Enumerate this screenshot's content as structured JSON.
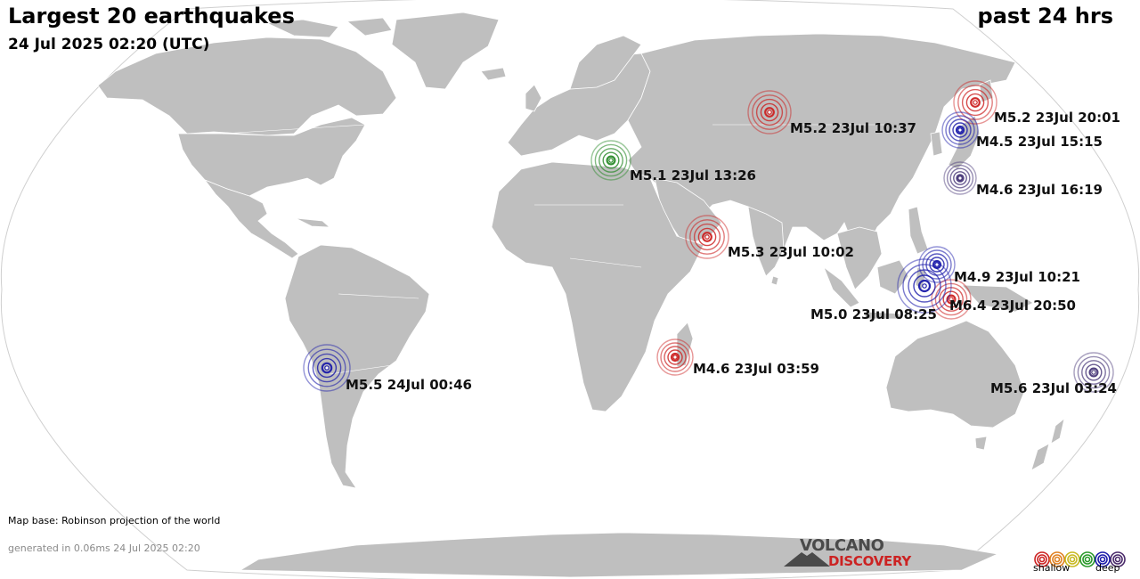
{
  "header": {
    "title": "Largest 20 earthquakes",
    "date": "24 Jul 2025 02:20 (UTC)",
    "period": "past 24 hrs"
  },
  "footer": {
    "map_note": "Map base: Robinson projection of the world",
    "generated": "generated in 0.06ms 24 Jul 2025 02:20",
    "logo_top": "VOLCANO",
    "logo_bottom": "DISCOVERY",
    "legend_shallow": "shallow",
    "legend_deep": "deep"
  },
  "colors": {
    "ocean": "#ffffff",
    "land": "#bfbfbf",
    "borders": "#ffffff",
    "shallow": "#cc2222",
    "intermediate": "#2a8a2a",
    "deep": "#1c1caa",
    "mid_deep": "#3a2a6a"
  },
  "legend_depth_colors": [
    "#cc2222",
    "#e08020",
    "#c8b820",
    "#2a9a2a",
    "#1c1caa",
    "#4a2a6a"
  ],
  "earthquakes": [
    {
      "label": "M5.2 23Jul 20:01",
      "color": "#cc2222"
    },
    {
      "label": "M5.2 23Jul 10:37",
      "color": "#cc2222"
    },
    {
      "label": "M4.5 23Jul 15:15",
      "color": "#1c1caa"
    },
    {
      "label": "M5.1 23Jul 13:26",
      "color": "#2a8a2a"
    },
    {
      "label": "M4.6 23Jul 16:19",
      "color": "#4a3a7a"
    },
    {
      "label": "M5.3 23Jul 10:02",
      "color": "#cc2222"
    },
    {
      "label": "M4.9 23Jul 10:21",
      "color": "#1c1caa"
    },
    {
      "label": "M6.4 23Jul 20:50",
      "color": "#cc2222"
    },
    {
      "label": "M5.0 23Jul 08:25",
      "color": "#1c1caa"
    },
    {
      "label": "M4.6 23Jul 03:59",
      "color": "#cc2222"
    },
    {
      "label": "M5.5 24Jul 00:46",
      "color": "#1c1caa"
    },
    {
      "label": "M5.6 23Jul 03:24",
      "color": "#4a3a7a"
    }
  ]
}
